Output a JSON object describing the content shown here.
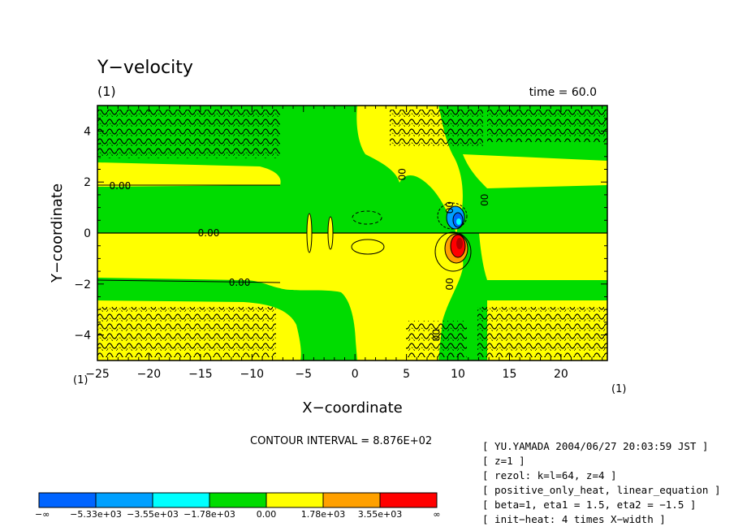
{
  "chart_data": {
    "type": "heatmap",
    "title": "Y−velocity",
    "panel_label": "(1)",
    "time_label": "time = 60.0",
    "xlabel": "X−coordinate",
    "ylabel": "Y−coordinate",
    "x_unit_label": "(1)",
    "y_unit_label": "(1)",
    "xlim": [
      -25,
      24.5
    ],
    "ylim": [
      -5,
      5
    ],
    "x_ticks": [
      -25,
      -20,
      -15,
      -10,
      -5,
      0,
      5,
      10,
      15,
      20
    ],
    "x_tick_labels": [
      "−25",
      "−20",
      "−15",
      "−10",
      "−5",
      "0",
      "5",
      "10",
      "15",
      "20"
    ],
    "y_ticks": [
      -4,
      -2,
      0,
      2,
      4
    ],
    "y_tick_labels": [
      "−4",
      "−2",
      "0",
      "2",
      "4"
    ],
    "contour_interval": "CONTOUR INTERVAL = 8.876E+02",
    "contour_labels": [
      {
        "text": "0.00",
        "x": -22.8,
        "y": 1.85
      },
      {
        "text": "0.00",
        "x": -14.2,
        "y": 0.0
      },
      {
        "text": "0.00",
        "x": -11.2,
        "y": -1.95
      },
      {
        "text": "00",
        "x": 4.6,
        "y": 2.3
      },
      {
        "text": "00",
        "x": 9.2,
        "y": 1.0
      },
      {
        "text": "00",
        "x": 12.6,
        "y": 1.3
      },
      {
        "text": "00",
        "x": 9.2,
        "y": -2.0
      },
      {
        "text": "00",
        "x": 7.9,
        "y": -4.0
      }
    ],
    "color_levels": [
      {
        "label": "−∞",
        "color": "#0064ff"
      },
      {
        "label": "−5.33e+03",
        "color": "#00a0ff"
      },
      {
        "label": "−3.55e+03",
        "color": "#00ffff"
      },
      {
        "label": "−1.78e+03",
        "color": "#00dc00"
      },
      {
        "label": "0.00",
        "color": "#ffff00"
      },
      {
        "label": "1.78e+03",
        "color": "#ffa000"
      },
      {
        "label": "3.55e+03",
        "color": "#ff0000"
      },
      {
        "label": "∞",
        "color": ""
      }
    ]
  },
  "meta": {
    "lines": [
      "[ YU.YAMADA 2004/06/27 20:03:59 JST ]",
      "[ z=1 ]",
      "[ rezol: k=l=64, z=4 ]",
      "[ positive_only_heat, linear_equation ]",
      "[ beta=1, eta1 = 1.5, eta2 = −1.5 ]",
      "[ init−heat: 4 times X−width ]"
    ]
  }
}
